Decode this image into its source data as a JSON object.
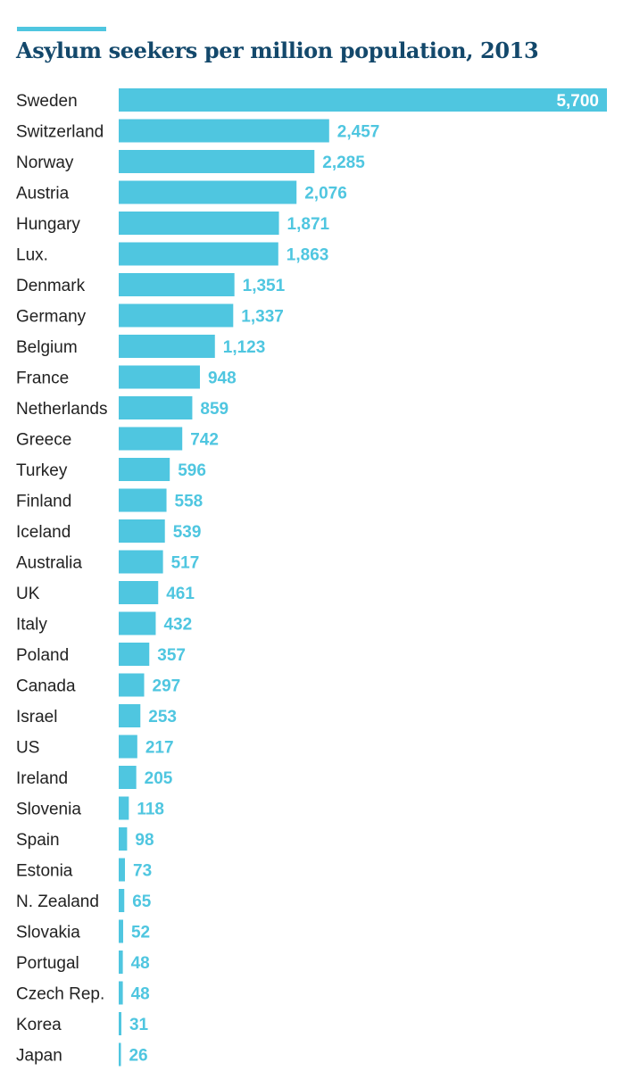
{
  "colors": {
    "accent": "#4fc6e0",
    "bar": "#4fc6e0",
    "title": "#13486b",
    "label": "#222222",
    "value_inside": "#ffffff"
  },
  "chart_data": {
    "type": "bar",
    "orientation": "horizontal",
    "title": "Asylum seekers per million population, 2013",
    "xlabel": "",
    "ylabel": "",
    "grid": false,
    "xlim": [
      0,
      5700
    ],
    "categories": [
      "Sweden",
      "Switzerland",
      "Norway",
      "Austria",
      "Hungary",
      "Lux.",
      "Denmark",
      "Germany",
      "Belgium",
      "France",
      "Netherlands",
      "Greece",
      "Turkey",
      "Finland",
      "Iceland",
      "Australia",
      "UK",
      "Italy",
      "Poland",
      "Canada",
      "Israel",
      "US",
      "Ireland",
      "Slovenia",
      "Spain",
      "Estonia",
      "N. Zealand",
      "Slovakia",
      "Portugal",
      "Czech Rep.",
      "Korea",
      "Japan"
    ],
    "values": [
      5700,
      2457,
      2285,
      2076,
      1871,
      1863,
      1351,
      1337,
      1123,
      948,
      859,
      742,
      596,
      558,
      539,
      517,
      461,
      432,
      357,
      297,
      253,
      217,
      205,
      118,
      98,
      73,
      65,
      52,
      48,
      48,
      31,
      26
    ],
    "value_labels": [
      "5,700",
      "2,457",
      "2,285",
      "2,076",
      "1,871",
      "1,863",
      "1,351",
      "1,337",
      "1,123",
      "948",
      "859",
      "742",
      "596",
      "558",
      "539",
      "517",
      "461",
      "432",
      "357",
      "297",
      "253",
      "217",
      "205",
      "118",
      "98",
      "73",
      "65",
      "52",
      "48",
      "48",
      "31",
      "26"
    ]
  }
}
